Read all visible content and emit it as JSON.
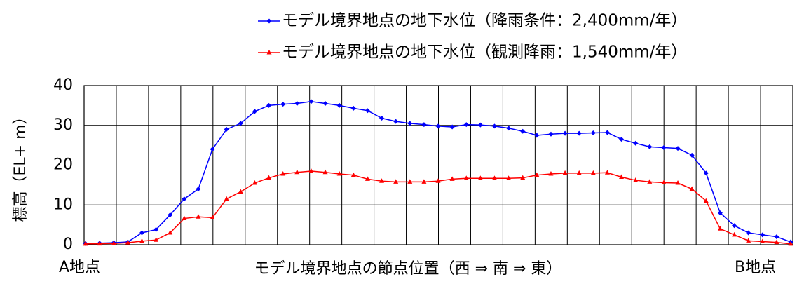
{
  "chart_data": {
    "type": "line",
    "y_label": "標高（EL+ m）",
    "x_label": "モデル境界地点の節点位置（西 ⇒ 南 ⇒ 東）",
    "annotations": [
      "A地点",
      "B地点"
    ],
    "ylim": [
      0,
      40
    ],
    "yticks": [
      0,
      10,
      20,
      30,
      40
    ],
    "grid": true,
    "legend": "top-right",
    "series": [
      {
        "name": "モデル境界地点の地下水位（降雨条件：2,400mm/年）",
        "color": "#0000ff",
        "marker": "diamond",
        "values": [
          0.3,
          0.4,
          0.5,
          0.7,
          3,
          3.8,
          7.5,
          11.5,
          14,
          24,
          29,
          30.5,
          33.5,
          35,
          35.3,
          35.5,
          36,
          35.5,
          35,
          34.3,
          33.7,
          31.8,
          31,
          30.5,
          30.2,
          29.8,
          29.6,
          30.2,
          30.1,
          29.8,
          29.3,
          28.5,
          27.5,
          27.8,
          28,
          28,
          28.1,
          28.2,
          26.5,
          25.5,
          24.6,
          24.4,
          24.2,
          22.5,
          18,
          8,
          4.8,
          3,
          2.5,
          2,
          0.7
        ]
      },
      {
        "name": "モデル境界地点の地下水位（観測降雨：1,540mm/年）",
        "color": "#ff0000",
        "marker": "triangle",
        "values": [
          0.2,
          0.25,
          0.3,
          0.5,
          0.9,
          1.2,
          3,
          6.6,
          7,
          6.8,
          11.5,
          13.3,
          15.5,
          16.8,
          17.8,
          18.2,
          18.5,
          18.2,
          17.8,
          17.5,
          16.5,
          16,
          15.8,
          15.8,
          15.8,
          16,
          16.5,
          16.7,
          16.7,
          16.7,
          16.7,
          16.8,
          17.5,
          17.8,
          18,
          18,
          18,
          18.1,
          17,
          16.2,
          15.8,
          15.6,
          15.5,
          14,
          11,
          4,
          2.5,
          1,
          0.8,
          0.6,
          0.2
        ]
      }
    ]
  }
}
